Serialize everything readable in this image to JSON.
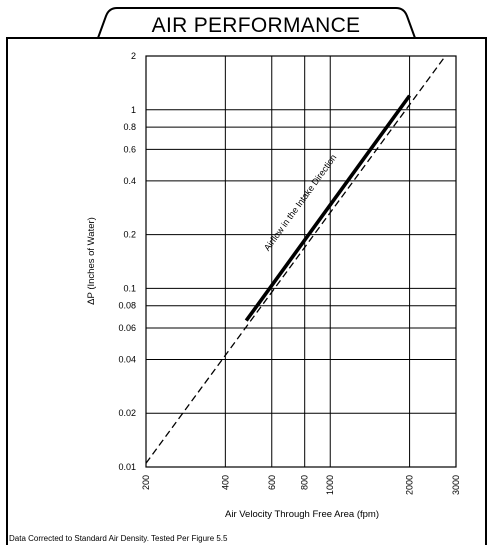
{
  "header": {
    "title": "AIR PERFORMANCE"
  },
  "footnote": "Data Corrected to Standard Air Density.  Tested Per Figure 5.5",
  "chart_data": {
    "type": "line",
    "title": "AIR PERFORMANCE",
    "xlabel": "Air Velocity Through Free Area (fpm)",
    "ylabel": "ΔP (Inches of Water)",
    "xscale": "log",
    "yscale": "log",
    "xlim": [
      200,
      3000
    ],
    "ylim": [
      0.01,
      2
    ],
    "grid": true,
    "x_ticks": [
      200,
      400,
      600,
      800,
      1000,
      2000,
      3000
    ],
    "x_tick_labels": [
      "200",
      "400",
      "600",
      "800",
      "1000",
      "2000",
      "3000"
    ],
    "y_ticks": [
      0.01,
      0.02,
      0.04,
      0.06,
      0.08,
      0.1,
      0.2,
      0.4,
      0.6,
      0.8,
      1,
      2
    ],
    "y_tick_labels": [
      "0.01",
      "0.02",
      "0.04",
      "0.06",
      "0.08",
      "0.1",
      "0.2",
      "0.4",
      "0.6",
      "0.8",
      "1",
      "2"
    ],
    "series": [
      {
        "name": "Airflow in the Intake Direction",
        "style": "dashed",
        "x": [
          200,
          2700
        ],
        "y": [
          0.0105,
          1.95
        ]
      },
      {
        "name": "Airflow in the Intake Direction",
        "style": "solid",
        "x": [
          480,
          2000
        ],
        "y": [
          0.066,
          1.2
        ]
      }
    ],
    "annotations": [
      {
        "text": "Airflow in the Intake Direction",
        "x": 850,
        "y": 0.27
      }
    ]
  }
}
